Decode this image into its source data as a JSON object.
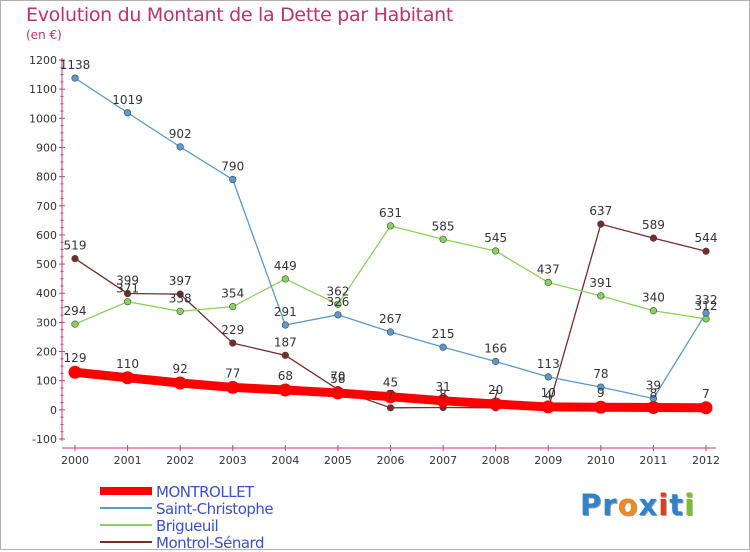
{
  "title": "Evolution du Montant de la Dette par Habitant",
  "subtitle": "(en €)",
  "logo_text": "Proxiti",
  "logo_colors": [
    "#2f83c9",
    "#2f83c9",
    "#f08a1e",
    "#2f83c9",
    "#e23a1e",
    "#2f83c9",
    "#7cbf2a"
  ],
  "chart_data": {
    "type": "line",
    "title": "Evolution du Montant de la Dette par Habitant",
    "subtitle": "(en €)",
    "xlabel": "",
    "ylabel": "",
    "x": [
      "2000",
      "2001",
      "2002",
      "2003",
      "2004",
      "2005",
      "2006",
      "2007",
      "2008",
      "2009",
      "2010",
      "2011",
      "2012"
    ],
    "ylim": [
      -100,
      1200
    ],
    "y_ticks": [
      "-100",
      "0",
      "100",
      "200",
      "300",
      "400",
      "500",
      "600",
      "700",
      "800",
      "900",
      "1000",
      "1100",
      "1200"
    ],
    "grid": false,
    "legend_position": "bottom-left",
    "series": [
      {
        "name": "MONTROLLET",
        "color": "#ff0000",
        "values": [
          129,
          110,
          92,
          77,
          68,
          58,
          45,
          31,
          20,
          10,
          9,
          8,
          7
        ],
        "labels": [
          "129",
          "110",
          "92",
          "77",
          "68",
          "58",
          "45",
          "31",
          "20",
          "10",
          "9",
          "8",
          "7"
        ]
      },
      {
        "name": "Saint-Christophe",
        "color": "#5a9ad0",
        "values": [
          1138,
          1019,
          902,
          790,
          291,
          326,
          267,
          215,
          166,
          113,
          78,
          39,
          332
        ],
        "labels": [
          "1138",
          "1019",
          "902",
          "790",
          "291",
          "326",
          "267",
          "215",
          "166",
          "113",
          "78",
          "39",
          "332"
        ]
      },
      {
        "name": "Brigueuil",
        "color": "#88d45a",
        "values": [
          294,
          371,
          338,
          354,
          449,
          362,
          631,
          585,
          545,
          437,
          391,
          340,
          312
        ],
        "labels": [
          "294",
          "371",
          "338",
          "354",
          "449",
          "362",
          "631",
          "585",
          "545",
          "437",
          "391",
          "340",
          "312"
        ]
      },
      {
        "name": "Montrol-Sénard",
        "color": "#7a2a2a",
        "values": [
          519,
          399,
          397,
          229,
          187,
          70,
          7,
          8,
          7,
          4,
          637,
          589,
          544
        ],
        "labels": [
          "519",
          "399",
          "397",
          "229",
          "187",
          "70",
          "7",
          "8",
          "7",
          "4",
          "637",
          "589",
          "544"
        ]
      }
    ]
  }
}
